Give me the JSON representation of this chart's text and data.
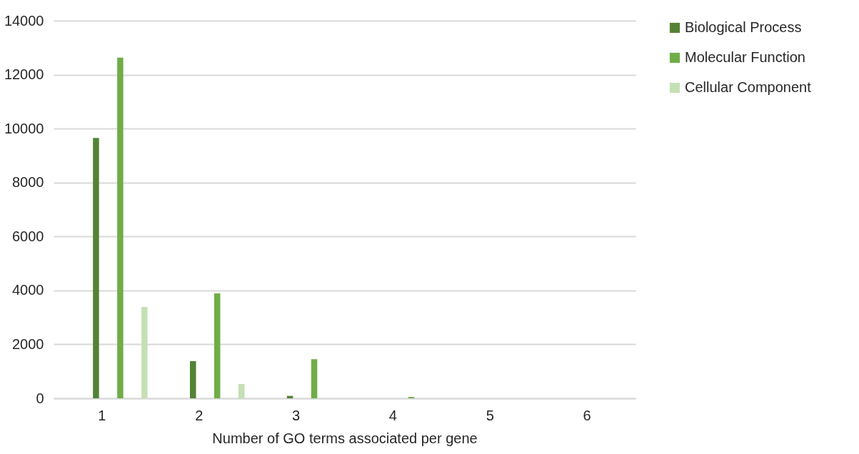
{
  "chart_data": {
    "type": "bar",
    "xlabel": "Number of GO terms associated per gene",
    "categories": [
      "1",
      "2",
      "3",
      "4",
      "5",
      "6"
    ],
    "series": [
      {
        "name": "Biological Process",
        "color": "#548235",
        "values": [
          9650,
          1380,
          90,
          0,
          0,
          0
        ]
      },
      {
        "name": "Molecular Function",
        "color": "#70ad47",
        "values": [
          12630,
          3890,
          1450,
          50,
          0,
          0
        ]
      },
      {
        "name": "Cellular Component",
        "color": "#c5e0b4",
        "values": [
          3390,
          530,
          0,
          0,
          0,
          0
        ]
      }
    ],
    "ylim": [
      0,
      14000
    ],
    "yticks": [
      0,
      2000,
      4000,
      6000,
      8000,
      10000,
      12000,
      14000
    ],
    "grid": "y",
    "legend": "right"
  }
}
